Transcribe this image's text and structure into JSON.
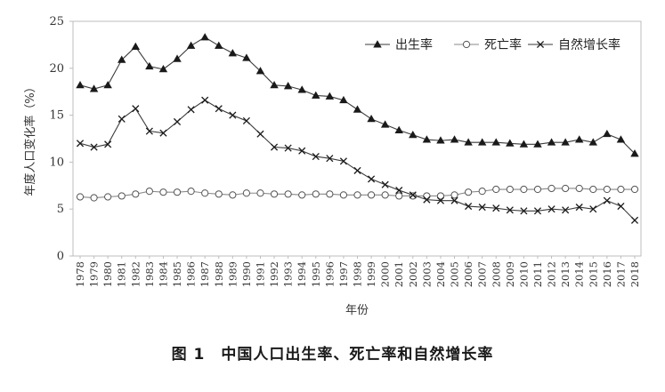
{
  "caption": "图 1　中国人口出生率、死亡率和自然增长率",
  "chart_data": {
    "type": "line",
    "xlabel": "年份",
    "ylabel": "年度人口变化率（%）",
    "ylim": [
      0,
      25
    ],
    "yticks": [
      0,
      5,
      10,
      15,
      20,
      25
    ],
    "grid": false,
    "legend_position": "top-right",
    "x": [
      1978,
      1979,
      1980,
      1981,
      1982,
      1983,
      1984,
      1985,
      1986,
      1987,
      1988,
      1989,
      1990,
      1991,
      1992,
      1993,
      1994,
      1995,
      1996,
      1997,
      1998,
      1999,
      2000,
      2001,
      2002,
      2003,
      2004,
      2005,
      2006,
      2007,
      2008,
      2009,
      2010,
      2011,
      2012,
      2013,
      2014,
      2015,
      2016,
      2017,
      2018
    ],
    "series": [
      {
        "name": "出生率",
        "marker": "triangle",
        "values": [
          18.2,
          17.8,
          18.2,
          20.9,
          22.3,
          20.2,
          19.9,
          21.0,
          22.4,
          23.3,
          22.4,
          21.6,
          21.1,
          19.7,
          18.2,
          18.1,
          17.7,
          17.1,
          17.0,
          16.6,
          15.6,
          14.6,
          14.0,
          13.4,
          12.9,
          12.4,
          12.3,
          12.4,
          12.1,
          12.1,
          12.1,
          12.0,
          11.9,
          11.9,
          12.1,
          12.1,
          12.4,
          12.1,
          13.0,
          12.4,
          10.9
        ]
      },
      {
        "name": "死亡率",
        "marker": "circle",
        "values": [
          6.3,
          6.2,
          6.3,
          6.4,
          6.6,
          6.9,
          6.8,
          6.8,
          6.9,
          6.7,
          6.6,
          6.5,
          6.7,
          6.7,
          6.6,
          6.6,
          6.5,
          6.6,
          6.6,
          6.5,
          6.5,
          6.5,
          6.5,
          6.4,
          6.4,
          6.4,
          6.4,
          6.5,
          6.8,
          6.9,
          7.1,
          7.1,
          7.1,
          7.1,
          7.2,
          7.2,
          7.2,
          7.1,
          7.1,
          7.1,
          7.1
        ]
      },
      {
        "name": "自然增长率",
        "marker": "x",
        "values": [
          12.0,
          11.6,
          11.9,
          14.6,
          15.7,
          13.3,
          13.1,
          14.3,
          15.6,
          16.6,
          15.7,
          15.0,
          14.4,
          13.0,
          11.6,
          11.5,
          11.2,
          10.6,
          10.4,
          10.1,
          9.1,
          8.2,
          7.6,
          7.0,
          6.5,
          6.0,
          5.9,
          5.9,
          5.3,
          5.2,
          5.1,
          4.9,
          4.8,
          4.8,
          5.0,
          4.9,
          5.2,
          5.0,
          5.9,
          5.3,
          3.8
        ]
      }
    ]
  }
}
